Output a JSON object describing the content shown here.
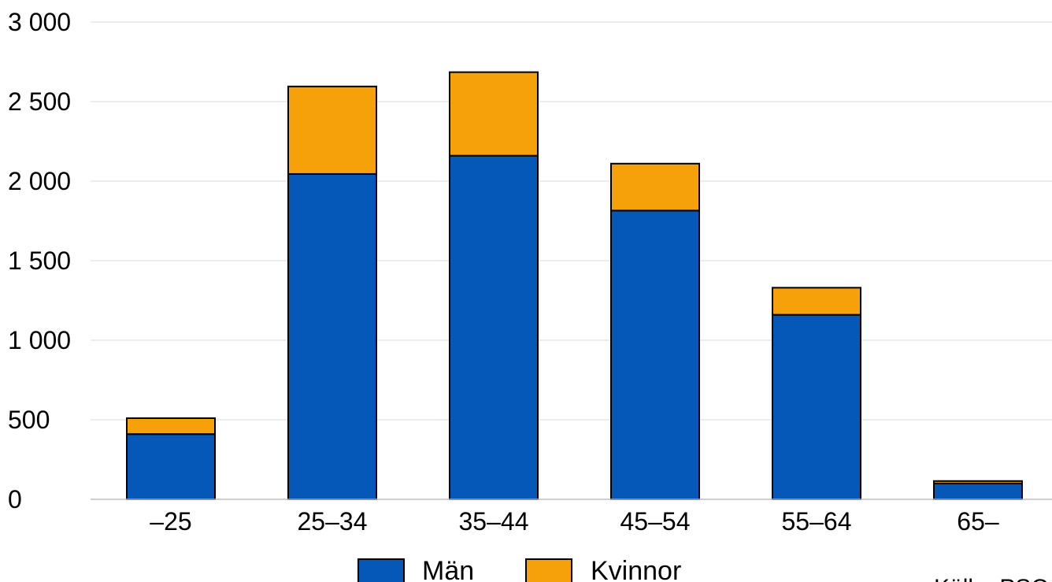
{
  "chart_data": {
    "type": "bar",
    "stacked": true,
    "categories": [
      "–25",
      "25–34",
      "35–44",
      "45–54",
      "55–64",
      "65–"
    ],
    "series": [
      {
        "name": "Män",
        "values": [
          410,
          2045,
          2160,
          1815,
          1160,
          100
        ],
        "color": "#0557B8"
      },
      {
        "name": "Kvinnor",
        "values": [
          100,
          550,
          525,
          295,
          170,
          15
        ],
        "color": "#F7A10A"
      }
    ],
    "yticks": [
      "0",
      "500",
      "1 000",
      "1 500",
      "2 000",
      "2 500",
      "3 000"
    ],
    "ylim": [
      0,
      3000
    ],
    "grid": true,
    "legend_position": "bottom",
    "source": "Källa: PSC"
  }
}
